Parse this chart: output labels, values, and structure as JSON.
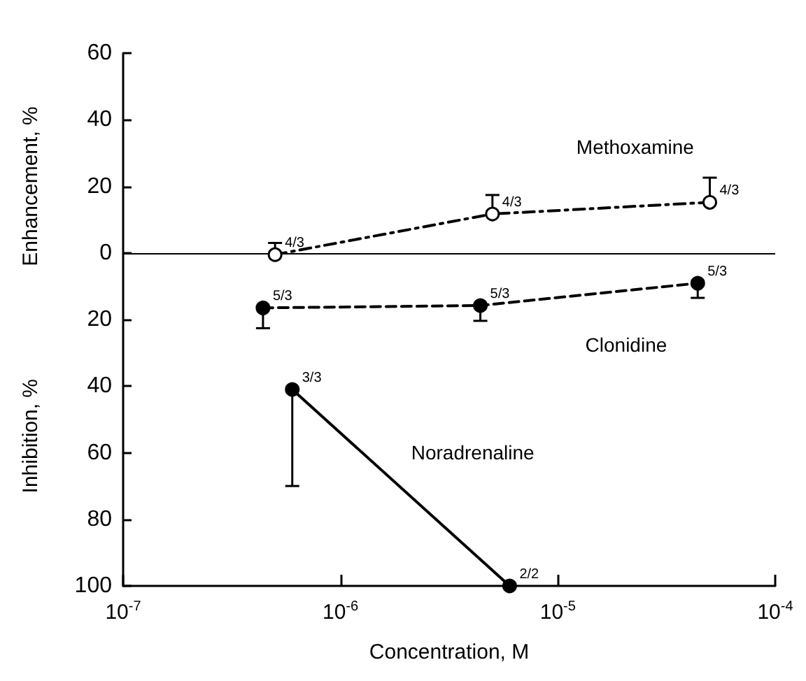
{
  "chart_data": {
    "type": "line",
    "xlabel": "Concentration, M",
    "ylabel": "Enhancement, %",
    "annotations": [
      "Inhibition, %",
      {
        "text": "4/3",
        "x": 5e-07,
        "y": -0.5
      },
      {
        "text": "4/3",
        "x": 5e-06,
        "y": 11.7
      },
      {
        "text": "4/3",
        "x": 5e-05,
        "y": 15.2
      },
      {
        "text": "5/3",
        "x": 4.4e-07,
        "y": -16.5
      },
      {
        "text": "5/3",
        "x": 4.4e-06,
        "y": -15.8
      },
      {
        "text": "5/3",
        "x": 4.4e-05,
        "y": -9.1
      },
      {
        "text": "3/3",
        "x": 6e-07,
        "y": -41
      },
      {
        "text": "2/2",
        "x": 6e-06,
        "y": -100
      }
    ],
    "log": "x",
    "xlim": [
      1e-07,
      0.0001
    ],
    "xticks": [
      {
        "value": 1e-07,
        "label": "10$^{-7}$"
      },
      {
        "value": 1e-06,
        "label": "10$^{-6}$"
      },
      {
        "value": 1e-05,
        "label": "10$^{-5}$"
      },
      {
        "value": 0.0001,
        "label": "10$^{-4}$"
      }
    ],
    "ylim": [
      -100,
      60
    ],
    "yticks": [
      {
        "value": -100,
        "label": "100"
      },
      {
        "value": -80,
        "label": "80"
      },
      {
        "value": -60,
        "label": "60"
      },
      {
        "value": -40,
        "label": "40"
      },
      {
        "value": -20,
        "label": "20"
      },
      0,
      20,
      40,
      60
    ],
    "grid": false,
    "legend": false,
    "ref_lines": [
      {
        "axis": "y",
        "value": 0,
        "color": "#000000"
      }
    ],
    "series": [
      {
        "name": "Methoxamine",
        "color": "#000000",
        "marker": "emptyCircle",
        "line_style": "dashdot",
        "x": [
          5e-07,
          5e-06,
          5e-05
        ],
        "values": [
          -0.5,
          11.7,
          15.2
        ],
        "errors": [
          [
            -0.5,
            3
          ],
          [
            11.7,
            17.4
          ],
          [
            15.2,
            22.6
          ]
        ]
      },
      {
        "name": "Clonidine",
        "color": "#000000",
        "marker": "circle",
        "line_style": "dashed",
        "x": [
          4.4e-07,
          4.4e-06,
          4.4e-05
        ],
        "values": [
          -16.5,
          -15.8,
          -9.1
        ],
        "errors": [
          [
            -22.6,
            -16.5
          ],
          [
            -20.4,
            -15.8
          ],
          [
            -13.5,
            -9.1
          ]
        ]
      },
      {
        "name": "Noradrenaline",
        "color": "#000000",
        "marker": "circle",
        "line_style": "solid",
        "x": [
          6e-07,
          6e-06
        ],
        "values": [
          -41,
          -100
        ],
        "errors": [
          [
            -70,
            -41
          ],
          null
        ]
      }
    ]
  }
}
